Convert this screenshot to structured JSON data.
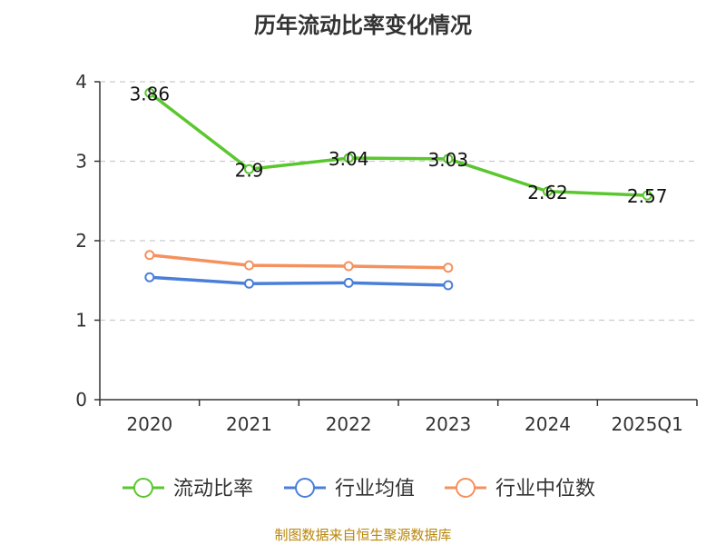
{
  "chart_data": {
    "type": "line",
    "title": "历年流动比率变化情况",
    "categories": [
      "2020",
      "2021",
      "2022",
      "2023",
      "2024",
      "2025Q1"
    ],
    "y_ticks": [
      "0",
      "1",
      "2",
      "3",
      "4"
    ],
    "ylim": [
      0,
      4
    ],
    "grid": true,
    "legend_position": "bottom",
    "series": [
      {
        "name": "流动比率",
        "color": "#5ac72e",
        "values": [
          3.86,
          2.9,
          3.04,
          3.03,
          2.62,
          2.57
        ],
        "labels": [
          "3.86",
          "2.9",
          "3.04",
          "3.03",
          "2.62",
          "2.57"
        ]
      },
      {
        "name": "行业均值",
        "color": "#4a7fd9",
        "values": [
          1.54,
          1.46,
          1.47,
          1.44,
          null,
          null
        ]
      },
      {
        "name": "行业中位数",
        "color": "#f4915e",
        "values": [
          1.82,
          1.69,
          1.68,
          1.66,
          null,
          null
        ]
      }
    ]
  },
  "footer": "制图数据来自恒生聚源数据库"
}
